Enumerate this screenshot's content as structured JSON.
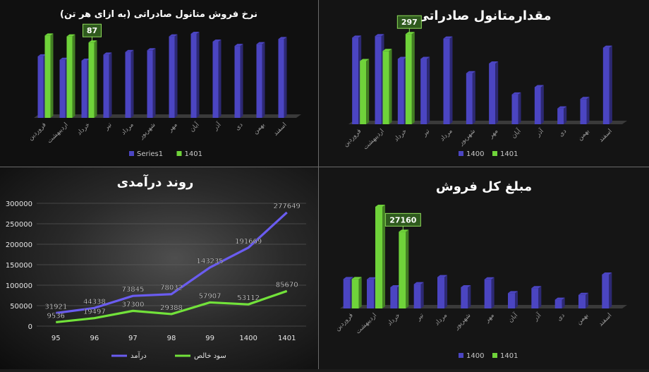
{
  "chart_data": [
    {
      "id": "unit-price",
      "type": "bar",
      "title": "نرخ فروش متانول صادراتی (به ازای هر تن)",
      "categories": [
        "فروردین",
        "اردیبهشت",
        "خرداد",
        "تیر",
        "مرداد",
        "شهریور",
        "مهر",
        "آبان",
        "آذر",
        "دی",
        "بهمن",
        "اسفند"
      ],
      "series": [
        {
          "name": "Series1",
          "color": "#4b45c2",
          "values": [
            71,
            67,
            66,
            73,
            76,
            78,
            94,
            97,
            88,
            83,
            85,
            91
          ]
        },
        {
          "name": "1401",
          "color": "#6fd33a",
          "values": [
            95,
            94,
            87,
            null,
            null,
            null,
            null,
            null,
            null,
            null,
            null,
            null
          ]
        }
      ],
      "callout": {
        "series": 1,
        "index": 2,
        "text": "87"
      },
      "ylim": [
        0,
        110
      ],
      "legend": "bottom"
    },
    {
      "id": "export-volume",
      "type": "bar",
      "title": "مقدارمتانول صادراتی",
      "categories": [
        "فروردین",
        "اردیبهشت",
        "خرداد",
        "تیر",
        "مرداد",
        "شهریور",
        "مهر",
        "آبان",
        "آذر",
        "دی",
        "بهمن",
        "اسفند"
      ],
      "series": [
        {
          "name": "1400",
          "color": "#4b45c2",
          "values": [
            285,
            290,
            215,
            215,
            282,
            168,
            200,
            98,
            122,
            52,
            83,
            252
          ]
        },
        {
          "name": "1401",
          "color": "#6fd33a",
          "values": [
            208,
            241,
            297,
            null,
            null,
            null,
            null,
            null,
            null,
            null,
            null,
            null
          ]
        }
      ],
      "callout": {
        "series": 1,
        "index": 2,
        "text": "297"
      },
      "ylim": [
        0,
        330
      ],
      "legend": "bottom"
    },
    {
      "id": "revenue-trend",
      "type": "line",
      "title": "روند درآمدی",
      "categories": [
        "95",
        "96",
        "97",
        "98",
        "99",
        "1400",
        "1401"
      ],
      "series": [
        {
          "name": "درآمد",
          "color": "#6a5cf0",
          "values": [
            31921,
            44338,
            73845,
            78032,
            143235,
            191669,
            277649
          ]
        },
        {
          "name": "سود خالص",
          "color": "#72e23a",
          "values": [
            9536,
            19497,
            37300,
            29388,
            57907,
            53112,
            85670
          ]
        }
      ],
      "yticks": [
        "0",
        "50000",
        "100000",
        "150000",
        "200000",
        "250000",
        "300000"
      ],
      "ylim": [
        0,
        300000
      ],
      "legend": "bottom"
    },
    {
      "id": "total-sales",
      "type": "bar",
      "title": "مبلغ کل فروش",
      "categories": [
        "فروردین",
        "اردیبهشت",
        "خرداد",
        "تیر",
        "مرداد",
        "شهریور",
        "مهر",
        "آبان",
        "آذر",
        "دی",
        "بهمن",
        "اسفند"
      ],
      "series": [
        {
          "name": "1400",
          "color": "#4b45c2",
          "values": [
            10400,
            10300,
            7500,
            8600,
            11100,
            7500,
            10300,
            5400,
            7200,
            3100,
            4800,
            12000
          ]
        },
        {
          "name": "1401",
          "color": "#6fd33a",
          "values": [
            10400,
            36000,
            27160,
            null,
            null,
            null,
            null,
            null,
            null,
            null,
            null,
            null
          ]
        }
      ],
      "callout": {
        "series": 1,
        "index": 2,
        "text": "27160"
      },
      "ylim": [
        0,
        40000
      ],
      "legend": "bottom"
    }
  ]
}
